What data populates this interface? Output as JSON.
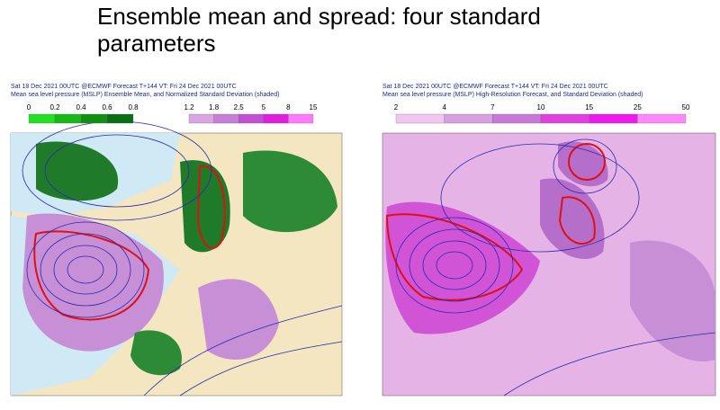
{
  "slide": {
    "title_line1": "Ensemble mean and spread: four standard",
    "title_line2": "parameters"
  },
  "left_map": {
    "header_line1": "Sat 18 Dec 2021 00UTC @ECMWF Forecast T+144 VT: Fri 24 Dec 2021 00UTC",
    "header_line2": "Mean sea level pressure (MSLP) Ensemble Mean, and Normalized Standard Deviation (shaded)",
    "scale_green": [
      "0",
      "0.2",
      "0.4",
      "0.6",
      "0.8"
    ],
    "scale_purple": [
      "1.2",
      "1.8",
      "2.5",
      "5",
      "8",
      "15"
    ]
  },
  "right_map": {
    "header_line1": "Sat 18 Dec 2021 00UTC @ECMWF Forecast T+144 VT: Fri 24 Dec 2021 00UTC",
    "header_line2": "Mean sea level pressure (MSLP) High-Resolution Forecast, and Standard Deviation (shaded)",
    "scale": [
      "2",
      "4",
      "7",
      "10",
      "15",
      "25",
      "50"
    ]
  }
}
